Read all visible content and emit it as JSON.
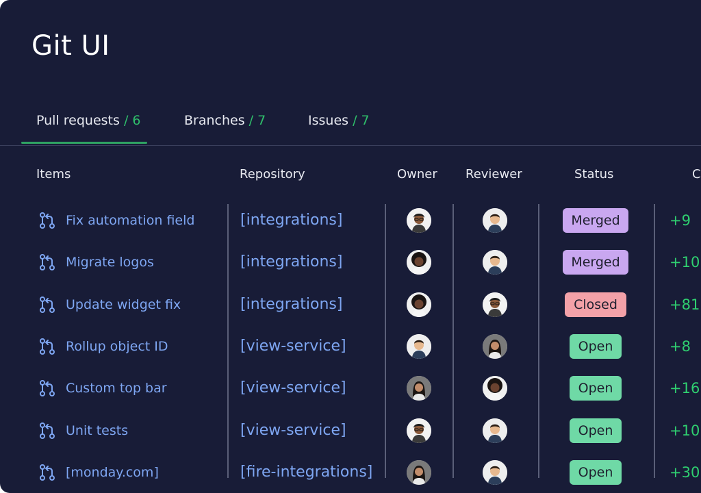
{
  "app": {
    "title": "Git UI"
  },
  "tabs": [
    {
      "label": "Pull requests",
      "count": "/ 6",
      "active": true
    },
    {
      "label": "Branches",
      "count": "/ 7",
      "active": false
    },
    {
      "label": "Issues",
      "count": "/ 7",
      "active": false
    }
  ],
  "columns": {
    "items": "Items",
    "repository": "Repository",
    "owner": "Owner",
    "reviewer": "Reviewer",
    "status": "Status",
    "changes": "C"
  },
  "status_colors": {
    "Merged": "#c9a7f0",
    "Closed": "#f3a1a8",
    "Open": "#6fd9a6"
  },
  "rows": [
    {
      "item": "Fix automation field",
      "repo": "[integrations]",
      "owner_avatar": "avatar-man-glasses",
      "reviewer_avatar": "avatar-man-short-hair",
      "status": "Merged",
      "delta": "+9"
    },
    {
      "item": "Migrate logos",
      "repo": "[integrations]",
      "owner_avatar": "avatar-woman-curly-hair",
      "reviewer_avatar": "avatar-man-short-hair",
      "status": "Merged",
      "delta": "+10"
    },
    {
      "item": "Update widget fix",
      "repo": "[integrations]",
      "owner_avatar": "avatar-woman-curly-hair",
      "reviewer_avatar": "avatar-man-glasses",
      "status": "Closed",
      "delta": "+81"
    },
    {
      "item": "Rollup object ID",
      "repo": "[view-service]",
      "owner_avatar": "avatar-man-short-hair",
      "reviewer_avatar": "avatar-woman-long-hair",
      "status": "Open",
      "delta": "+8"
    },
    {
      "item": "Custom top bar",
      "repo": "[view-service]",
      "owner_avatar": "avatar-woman-long-hair",
      "reviewer_avatar": "avatar-woman-curly-hair",
      "status": "Open",
      "delta": "+16"
    },
    {
      "item": "Unit tests",
      "repo": "[view-service]",
      "owner_avatar": "avatar-man-glasses",
      "reviewer_avatar": "avatar-man-short-hair",
      "status": "Open",
      "delta": "+10"
    },
    {
      "item": "[monday.com]",
      "repo": "[fire-integrations]",
      "owner_avatar": "avatar-woman-long-hair",
      "reviewer_avatar": "avatar-man-short-hair",
      "status": "Open",
      "delta": "+30"
    }
  ]
}
